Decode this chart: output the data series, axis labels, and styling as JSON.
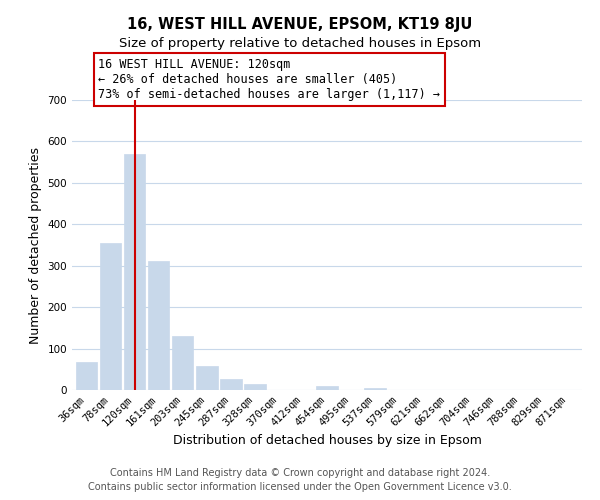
{
  "title": "16, WEST HILL AVENUE, EPSOM, KT19 8JU",
  "subtitle": "Size of property relative to detached houses in Epsom",
  "xlabel": "Distribution of detached houses by size in Epsom",
  "ylabel": "Number of detached properties",
  "bar_labels": [
    "36sqm",
    "78sqm",
    "120sqm",
    "161sqm",
    "203sqm",
    "245sqm",
    "287sqm",
    "328sqm",
    "370sqm",
    "412sqm",
    "454sqm",
    "495sqm",
    "537sqm",
    "579sqm",
    "621sqm",
    "662sqm",
    "704sqm",
    "746sqm",
    "788sqm",
    "829sqm",
    "871sqm"
  ],
  "bar_values": [
    68,
    355,
    570,
    312,
    130,
    57,
    27,
    14,
    0,
    0,
    10,
    0,
    4,
    0,
    0,
    0,
    0,
    0,
    0,
    0,
    0
  ],
  "bar_color": "#c8d8ea",
  "vline_x": 2,
  "vline_color": "#cc0000",
  "annotation_text": "16 WEST HILL AVENUE: 120sqm\n← 26% of detached houses are smaller (405)\n73% of semi-detached houses are larger (1,117) →",
  "annotation_box_color": "#ffffff",
  "annotation_box_edge_color": "#cc0000",
  "ylim": [
    0,
    700
  ],
  "yticks": [
    0,
    100,
    200,
    300,
    400,
    500,
    600,
    700
  ],
  "footer_line1": "Contains HM Land Registry data © Crown copyright and database right 2024.",
  "footer_line2": "Contains public sector information licensed under the Open Government Licence v3.0.",
  "bg_color": "#ffffff",
  "grid_color": "#c8d8ea",
  "title_fontsize": 10.5,
  "subtitle_fontsize": 9.5,
  "axis_label_fontsize": 9,
  "tick_fontsize": 7.5,
  "annotation_fontsize": 8.5,
  "footer_fontsize": 7,
  "footer_color": "#555555"
}
